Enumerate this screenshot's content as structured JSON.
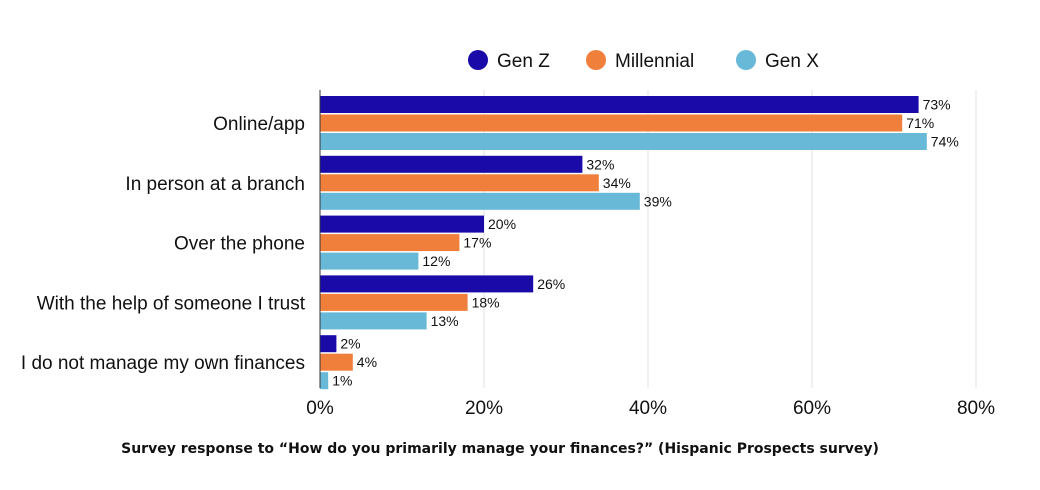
{
  "chart_data": {
    "type": "bar",
    "orientation": "horizontal",
    "categories": [
      "Online/app",
      "In person at a branch",
      "Over the phone",
      "With the help of someone I trust",
      "I do not manage my own finances"
    ],
    "series": [
      {
        "name": "Gen Z",
        "color": "#1a0aa8",
        "values": [
          73,
          32,
          20,
          26,
          2
        ],
        "labels": [
          "73%",
          "32%",
          "20%",
          "26%",
          "2%"
        ]
      },
      {
        "name": "Millennial",
        "color": "#f07f3c",
        "values": [
          71,
          34,
          17,
          18,
          4
        ],
        "labels": [
          "71%",
          "34%",
          "17%",
          "18%",
          "4%"
        ]
      },
      {
        "name": "Gen X",
        "color": "#68b8d8",
        "values": [
          74,
          39,
          12,
          13,
          1
        ],
        "labels": [
          "74%",
          "39%",
          "12%",
          "13%",
          "1%"
        ]
      }
    ],
    "xlim": [
      0,
      80
    ],
    "xticks": [
      0,
      20,
      40,
      60,
      80
    ],
    "xtick_labels": [
      "0%",
      "20%",
      "40%",
      "60%",
      "80%"
    ],
    "legend_position": "top-center",
    "grid": true,
    "title": "",
    "xlabel": "",
    "ylabel": "",
    "caption": "Survey response to “How do you primarily manage your finances?” (Hispanic Prospects survey)"
  }
}
